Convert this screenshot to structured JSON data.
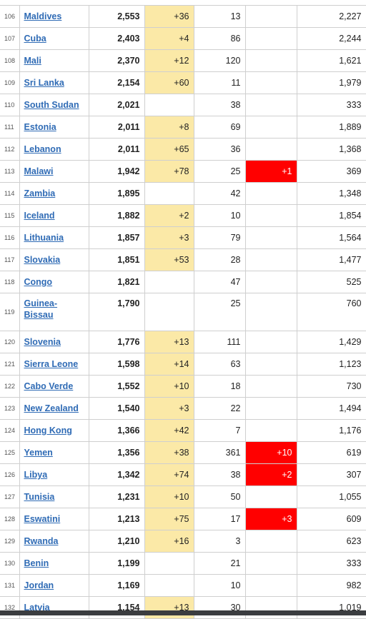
{
  "rows": [
    {
      "rank": "106",
      "country": "Maldives",
      "total": "2,553",
      "new": "+36",
      "deaths": "13",
      "new_deaths": "",
      "recovered": "2,227"
    },
    {
      "rank": "107",
      "country": "Cuba",
      "total": "2,403",
      "new": "+4",
      "deaths": "86",
      "new_deaths": "",
      "recovered": "2,244"
    },
    {
      "rank": "108",
      "country": "Mali",
      "total": "2,370",
      "new": "+12",
      "deaths": "120",
      "new_deaths": "",
      "recovered": "1,621"
    },
    {
      "rank": "109",
      "country": "Sri Lanka",
      "total": "2,154",
      "new": "+60",
      "deaths": "11",
      "new_deaths": "",
      "recovered": "1,979"
    },
    {
      "rank": "110",
      "country": "South Sudan",
      "total": "2,021",
      "new": "",
      "deaths": "38",
      "new_deaths": "",
      "recovered": "333"
    },
    {
      "rank": "111",
      "country": "Estonia",
      "total": "2,011",
      "new": "+8",
      "deaths": "69",
      "new_deaths": "",
      "recovered": "1,889"
    },
    {
      "rank": "112",
      "country": "Lebanon",
      "total": "2,011",
      "new": "+65",
      "deaths": "36",
      "new_deaths": "",
      "recovered": "1,368"
    },
    {
      "rank": "113",
      "country": "Malawi",
      "total": "1,942",
      "new": "+78",
      "deaths": "25",
      "new_deaths": "+1",
      "recovered": "369"
    },
    {
      "rank": "114",
      "country": "Zambia",
      "total": "1,895",
      "new": "",
      "deaths": "42",
      "new_deaths": "",
      "recovered": "1,348"
    },
    {
      "rank": "115",
      "country": "Iceland",
      "total": "1,882",
      "new": "+2",
      "deaths": "10",
      "new_deaths": "",
      "recovered": "1,854"
    },
    {
      "rank": "116",
      "country": "Lithuania",
      "total": "1,857",
      "new": "+3",
      "deaths": "79",
      "new_deaths": "",
      "recovered": "1,564"
    },
    {
      "rank": "117",
      "country": "Slovakia",
      "total": "1,851",
      "new": "+53",
      "deaths": "28",
      "new_deaths": "",
      "recovered": "1,477"
    },
    {
      "rank": "118",
      "country": "Congo",
      "total": "1,821",
      "new": "",
      "deaths": "47",
      "new_deaths": "",
      "recovered": "525"
    },
    {
      "rank": "119",
      "country": "Guinea-Bissau",
      "country_line1": "Guinea-",
      "country_line2": "Bissau",
      "total": "1,790",
      "new": "",
      "deaths": "25",
      "new_deaths": "",
      "recovered": "760"
    },
    {
      "rank": "120",
      "country": "Slovenia",
      "total": "1,776",
      "new": "+13",
      "deaths": "111",
      "new_deaths": "",
      "recovered": "1,429"
    },
    {
      "rank": "121",
      "country": "Sierra Leone",
      "total": "1,598",
      "new": "+14",
      "deaths": "63",
      "new_deaths": "",
      "recovered": "1,123"
    },
    {
      "rank": "122",
      "country": "Cabo Verde",
      "total": "1,552",
      "new": "+10",
      "deaths": "18",
      "new_deaths": "",
      "recovered": "730"
    },
    {
      "rank": "123",
      "country": "New Zealand",
      "total": "1,540",
      "new": "+3",
      "deaths": "22",
      "new_deaths": "",
      "recovered": "1,494"
    },
    {
      "rank": "124",
      "country": "Hong Kong",
      "total": "1,366",
      "new": "+42",
      "deaths": "7",
      "new_deaths": "",
      "recovered": "1,176"
    },
    {
      "rank": "125",
      "country": "Yemen",
      "total": "1,356",
      "new": "+38",
      "deaths": "361",
      "new_deaths": "+10",
      "recovered": "619"
    },
    {
      "rank": "126",
      "country": "Libya",
      "total": "1,342",
      "new": "+74",
      "deaths": "38",
      "new_deaths": "+2",
      "recovered": "307"
    },
    {
      "rank": "127",
      "country": "Tunisia",
      "total": "1,231",
      "new": "+10",
      "deaths": "50",
      "new_deaths": "",
      "recovered": "1,055"
    },
    {
      "rank": "128",
      "country": "Eswatini",
      "total": "1,213",
      "new": "+75",
      "deaths": "17",
      "new_deaths": "+3",
      "recovered": "609"
    },
    {
      "rank": "129",
      "country": "Rwanda",
      "total": "1,210",
      "new": "+16",
      "deaths": "3",
      "new_deaths": "",
      "recovered": "623"
    },
    {
      "rank": "130",
      "country": "Benin",
      "total": "1,199",
      "new": "",
      "deaths": "21",
      "new_deaths": "",
      "recovered": "333"
    },
    {
      "rank": "131",
      "country": "Jordan",
      "total": "1,169",
      "new": "",
      "deaths": "10",
      "new_deaths": "",
      "recovered": "982"
    },
    {
      "rank": "132",
      "country": "Latvia",
      "total": "1,154",
      "new": "+13",
      "deaths": "30",
      "new_deaths": "",
      "recovered": "1,019"
    }
  ],
  "colors": {
    "link": "#2f6bb5",
    "new_cases_highlight": "#fbe9a7",
    "new_deaths_highlight": "#ff0000",
    "grid_border": "#cfcfcf"
  }
}
